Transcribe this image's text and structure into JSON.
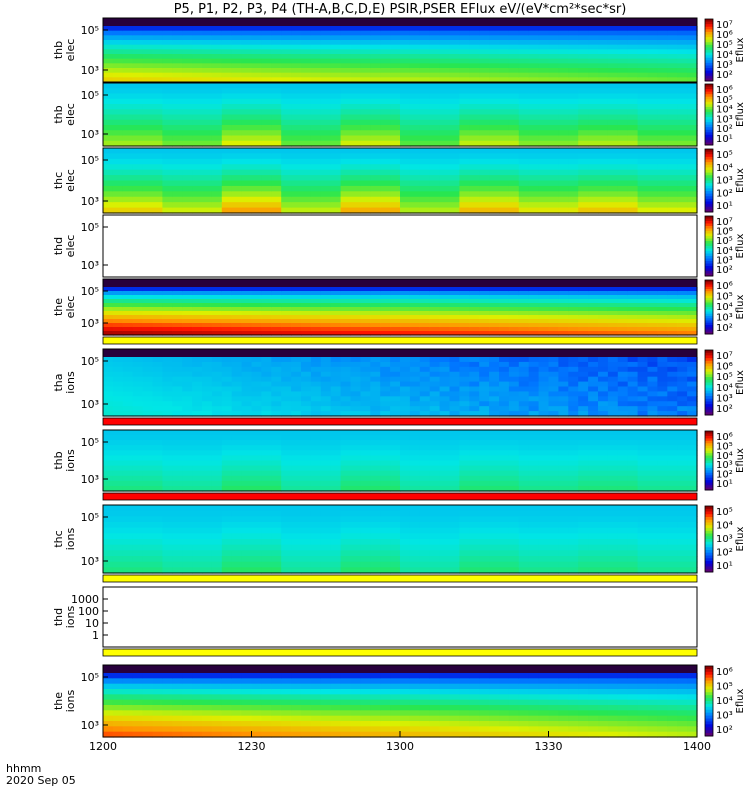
{
  "title": "P5, P1, P2, P3, P4 (TH-A,B,C,D,E) PSIR,PSER EFlux eV/(eV*cm²*sec*sr)",
  "footer": {
    "var_label": "hhmm",
    "date_label": "2020 Sep 05"
  },
  "chart_data": [
    {
      "type": "heatmap",
      "probe": "thb",
      "species": "elec",
      "ylabel_1": "thb",
      "ylabel_2": "elec",
      "yticks": [
        "10⁵",
        "10³"
      ],
      "cbar_label": "Eflux",
      "cbar_ticks": [
        "10⁷",
        "10⁶",
        "10⁵",
        "10⁴",
        "10³",
        "10²"
      ],
      "profile": "smooth",
      "peak": 0.72,
      "decay": 0.25,
      "topband": true,
      "bottom_strip": null
    },
    {
      "type": "heatmap",
      "probe": "thb",
      "species": "elec",
      "ylabel_1": "thb",
      "ylabel_2": "elec",
      "yticks": [
        "10⁵",
        "10³"
      ],
      "cbar_label": "Eflux",
      "cbar_ticks": [
        "10⁶",
        "10⁵",
        "10⁴",
        "10³",
        "10²",
        "10¹"
      ],
      "profile": "blocky",
      "peak": 0.6,
      "decay": 0.0,
      "topband": false,
      "bottom_strip": null
    },
    {
      "type": "heatmap",
      "probe": "thc",
      "species": "elec",
      "ylabel_1": "thc",
      "ylabel_2": "elec",
      "yticks": [
        "10⁵",
        "10³"
      ],
      "cbar_label": "Eflux",
      "cbar_ticks": [
        "10⁵",
        "10⁴",
        "10³",
        "10²",
        "10¹"
      ],
      "profile": "blocky",
      "peak": 0.7,
      "decay": 0.0,
      "topband": false,
      "bottom_strip": null
    },
    {
      "type": "heatmap",
      "probe": "thd",
      "species": "elec",
      "ylabel_1": "thd",
      "ylabel_2": "elec",
      "yticks": [
        "10⁵",
        "10³"
      ],
      "cbar_label": "Eflux",
      "cbar_ticks": [
        "10⁷",
        "10⁶",
        "10⁵",
        "10⁴",
        "10³",
        "10²"
      ],
      "profile": "empty",
      "peak": 0,
      "decay": 0,
      "topband": false,
      "bottom_strip": null
    },
    {
      "type": "heatmap",
      "probe": "the",
      "species": "elec",
      "ylabel_1": "the",
      "ylabel_2": "elec",
      "yticks": [
        "10⁵",
        "10³"
      ],
      "cbar_label": "Eflux",
      "cbar_ticks": [
        "10⁶",
        "10⁵",
        "10⁴",
        "10³",
        "10²"
      ],
      "profile": "smooth",
      "peak": 0.97,
      "decay": 0.2,
      "topband": true,
      "bottom_strip": "#ffff00"
    },
    {
      "type": "heatmap",
      "probe": "tha",
      "species": "ions",
      "ylabel_1": "tha",
      "ylabel_2": "ions",
      "yticks": [
        "10⁵",
        "10³"
      ],
      "cbar_label": "Eflux",
      "cbar_ticks": [
        "10⁷",
        "10⁶",
        "10⁵",
        "10⁴",
        "10³",
        "10²"
      ],
      "profile": "speckle",
      "peak": 0.3,
      "decay": 0.15,
      "topband": true,
      "bottom_strip": "#ff0000"
    },
    {
      "type": "heatmap",
      "probe": "thb",
      "species": "ions",
      "ylabel_1": "thb",
      "ylabel_2": "ions",
      "yticks": [
        "10⁵",
        "10³"
      ],
      "cbar_label": "Eflux",
      "cbar_ticks": [
        "10⁶",
        "10⁵",
        "10⁴",
        "10³",
        "10²",
        "10¹"
      ],
      "profile": "blocky",
      "peak": 0.45,
      "decay": 0.0,
      "topband": false,
      "bottom_strip": "#ff0000"
    },
    {
      "type": "heatmap",
      "probe": "thc",
      "species": "ions",
      "ylabel_1": "thc",
      "ylabel_2": "ions",
      "yticks": [
        "10⁵",
        "10³"
      ],
      "cbar_label": "Eflux",
      "cbar_ticks": [
        "10⁵",
        "10⁴",
        "10³",
        "10²",
        "10¹"
      ],
      "profile": "blocky",
      "peak": 0.45,
      "decay": 0.0,
      "topband": false,
      "bottom_strip": "#ffff00"
    },
    {
      "type": "heatmap",
      "probe": "thd",
      "species": "ions",
      "ylabel_1": "thd",
      "ylabel_2": "ions",
      "yticks": [
        "1000",
        "100",
        "10",
        "1"
      ],
      "cbar_label": "",
      "cbar_ticks": [],
      "profile": "empty",
      "peak": 0,
      "decay": 0,
      "topband": false,
      "bottom_strip": "#ffff00"
    },
    {
      "type": "heatmap",
      "probe": "the",
      "species": "ions",
      "ylabel_1": "the",
      "ylabel_2": "ions",
      "yticks": [
        "10⁵",
        "10³"
      ],
      "cbar_label": "Eflux",
      "cbar_ticks": [
        "10⁶",
        "10⁵",
        "10⁴",
        "10³",
        "10²"
      ],
      "profile": "smooth",
      "peak": 0.85,
      "decay": 0.3,
      "topband": true,
      "bottom_strip": null
    }
  ],
  "x_axis": {
    "ticks": [
      "1200",
      "1230",
      "1300",
      "1330",
      "1400"
    ]
  }
}
